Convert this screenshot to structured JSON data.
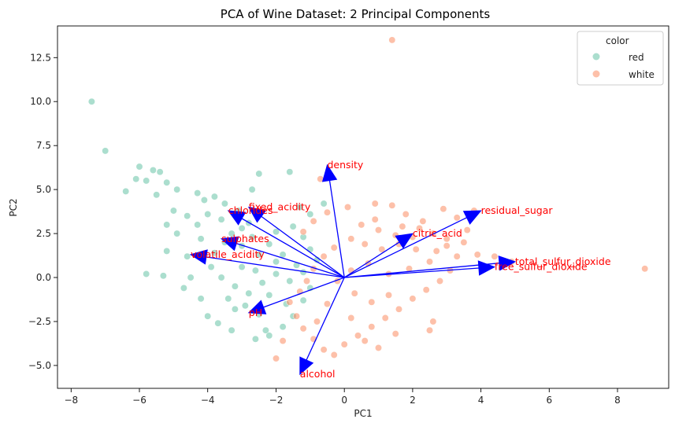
{
  "chart_data": {
    "type": "scatter",
    "title": "PCA of Wine Dataset: 2 Principal Components",
    "xlabel": "PC1",
    "ylabel": "PC2",
    "xlim": [
      -8.4,
      9.5
    ],
    "ylim": [
      -6.3,
      14.3
    ],
    "x_ticks": [
      -8,
      -6,
      -4,
      -2,
      0,
      2,
      4,
      6,
      8
    ],
    "y_ticks": [
      -5.0,
      -2.5,
      0.0,
      2.5,
      5.0,
      7.5,
      10.0,
      12.5
    ],
    "grid": false,
    "legend": {
      "title": "color",
      "position": "top-right",
      "entries": [
        {
          "label": "red",
          "color": "#66c2a5"
        },
        {
          "label": "white",
          "color": "#fc8d62"
        }
      ]
    },
    "series": [
      {
        "name": "red",
        "color": "#66c2a5",
        "points": [
          [
            -7.4,
            10.0
          ],
          [
            -7.0,
            7.2
          ],
          [
            -6.0,
            6.3
          ],
          [
            -5.6,
            6.1
          ],
          [
            -5.4,
            6.0
          ],
          [
            -6.1,
            5.6
          ],
          [
            -5.8,
            5.5
          ],
          [
            -5.2,
            5.4
          ],
          [
            -6.4,
            4.9
          ],
          [
            -5.5,
            4.7
          ],
          [
            -4.9,
            5.0
          ],
          [
            -4.3,
            4.8
          ],
          [
            -4.1,
            4.4
          ],
          [
            -3.8,
            4.6
          ],
          [
            -3.5,
            4.2
          ],
          [
            -2.5,
            5.9
          ],
          [
            -1.6,
            6.0
          ],
          [
            -2.7,
            5.0
          ],
          [
            -5.0,
            3.8
          ],
          [
            -4.6,
            3.5
          ],
          [
            -4.3,
            3.0
          ],
          [
            -4.9,
            2.5
          ],
          [
            -5.2,
            3.0
          ],
          [
            -5.2,
            1.5
          ],
          [
            -4.6,
            1.2
          ],
          [
            -5.3,
            0.1
          ],
          [
            -5.8,
            0.2
          ],
          [
            -4.5,
            0.0
          ],
          [
            -4.7,
            -0.6
          ],
          [
            -4.2,
            -1.2
          ],
          [
            -4.0,
            -2.2
          ],
          [
            -3.7,
            -2.6
          ],
          [
            -3.3,
            -3.0
          ],
          [
            -3.2,
            -1.8
          ],
          [
            -2.5,
            -2.1
          ],
          [
            -2.3,
            -3.0
          ],
          [
            -2.6,
            -3.5
          ],
          [
            -2.2,
            -3.3
          ],
          [
            -1.8,
            -2.8
          ],
          [
            -1.5,
            -2.2
          ],
          [
            -1.2,
            -1.3
          ],
          [
            -1.0,
            -0.6
          ],
          [
            -3.0,
            2.8
          ],
          [
            -2.8,
            3.1
          ],
          [
            -2.0,
            2.6
          ],
          [
            -1.5,
            2.9
          ],
          [
            -1.2,
            2.3
          ],
          [
            -1.0,
            1.6
          ],
          [
            -0.8,
            1.0
          ],
          [
            -1.4,
            0.7
          ],
          [
            -2.0,
            0.9
          ],
          [
            -2.5,
            1.3
          ],
          [
            -3.0,
            1.8
          ],
          [
            -3.5,
            2.0
          ],
          [
            -3.8,
            1.4
          ],
          [
            -3.9,
            0.6
          ],
          [
            -3.6,
            0.0
          ],
          [
            -3.2,
            -0.5
          ],
          [
            -2.8,
            -0.9
          ],
          [
            -2.4,
            -0.3
          ],
          [
            -2.0,
            0.2
          ],
          [
            -1.6,
            -0.2
          ],
          [
            -1.2,
            0.3
          ],
          [
            -2.2,
            1.9
          ],
          [
            -2.7,
            2.3
          ],
          [
            -3.3,
            2.5
          ],
          [
            -3.0,
            0.6
          ],
          [
            -2.6,
            0.4
          ],
          [
            -1.8,
            1.3
          ],
          [
            -3.4,
            -1.2
          ],
          [
            -2.9,
            -1.6
          ],
          [
            -2.2,
            -1.0
          ],
          [
            -1.7,
            -1.5
          ],
          [
            -4.2,
            2.2
          ],
          [
            -4.0,
            3.6
          ],
          [
            -3.6,
            3.3
          ],
          [
            -1.0,
            3.6
          ],
          [
            -0.6,
            4.2
          ],
          [
            -1.3,
            4.0
          ],
          [
            -3.1,
            3.8
          ]
        ]
      },
      {
        "name": "white",
        "color": "#fc8d62",
        "points": [
          [
            1.4,
            13.5
          ],
          [
            8.8,
            0.5
          ],
          [
            4.4,
            1.2
          ],
          [
            4.9,
            0.9
          ],
          [
            3.8,
            3.8
          ],
          [
            3.3,
            3.4
          ],
          [
            2.9,
            3.9
          ],
          [
            2.3,
            3.2
          ],
          [
            1.8,
            3.6
          ],
          [
            1.4,
            4.1
          ],
          [
            0.9,
            4.2
          ],
          [
            0.1,
            4.0
          ],
          [
            -0.5,
            3.7
          ],
          [
            -0.9,
            3.2
          ],
          [
            -1.2,
            2.6
          ],
          [
            0.5,
            3.0
          ],
          [
            1.0,
            2.7
          ],
          [
            1.5,
            2.4
          ],
          [
            2.0,
            2.3
          ],
          [
            2.6,
            2.5
          ],
          [
            3.0,
            2.2
          ],
          [
            3.5,
            2.0
          ],
          [
            3.9,
            1.3
          ],
          [
            3.3,
            1.2
          ],
          [
            2.7,
            1.5
          ],
          [
            2.1,
            1.6
          ],
          [
            1.6,
            1.9
          ],
          [
            1.1,
            1.6
          ],
          [
            0.6,
            1.9
          ],
          [
            0.2,
            2.2
          ],
          [
            -0.3,
            1.7
          ],
          [
            -0.6,
            1.2
          ],
          [
            -0.9,
            0.5
          ],
          [
            -1.1,
            -0.2
          ],
          [
            -1.3,
            -0.8
          ],
          [
            -1.6,
            -1.4
          ],
          [
            -1.4,
            -2.2
          ],
          [
            -1.2,
            -2.9
          ],
          [
            -0.9,
            -3.5
          ],
          [
            -0.6,
            -4.1
          ],
          [
            -0.3,
            -4.4
          ],
          [
            0.0,
            -3.8
          ],
          [
            0.4,
            -3.3
          ],
          [
            0.8,
            -2.8
          ],
          [
            1.2,
            -2.3
          ],
          [
            1.6,
            -1.8
          ],
          [
            2.0,
            -1.2
          ],
          [
            2.4,
            -0.7
          ],
          [
            2.8,
            -0.2
          ],
          [
            3.1,
            0.4
          ],
          [
            2.5,
            0.9
          ],
          [
            1.9,
            0.5
          ],
          [
            1.3,
            0.2
          ],
          [
            0.7,
            0.8
          ],
          [
            0.2,
            0.4
          ],
          [
            -0.2,
            -0.2
          ],
          [
            0.3,
            -0.9
          ],
          [
            0.8,
            -1.4
          ],
          [
            1.3,
            -1.0
          ],
          [
            -0.5,
            -1.5
          ],
          [
            -0.8,
            -2.5
          ],
          [
            0.2,
            -2.3
          ],
          [
            0.6,
            -3.6
          ],
          [
            1.0,
            -4.0
          ],
          [
            1.5,
            -3.2
          ],
          [
            2.5,
            -3.0
          ],
          [
            2.6,
            -2.5
          ],
          [
            -2.0,
            -4.6
          ],
          [
            -1.8,
            -3.6
          ],
          [
            -0.7,
            5.6
          ],
          [
            3.0,
            1.8
          ],
          [
            3.6,
            2.7
          ],
          [
            2.2,
            2.8
          ],
          [
            1.7,
            2.9
          ],
          [
            0.9,
            3.3
          ]
        ]
      }
    ],
    "loadings": [
      {
        "label": "density",
        "x": -0.5,
        "y": 6.4
      },
      {
        "label": "fixed_acidity",
        "x": -2.8,
        "y": 4.0
      },
      {
        "label": "chlorides",
        "x": -3.4,
        "y": 3.8
      },
      {
        "label": "sulphates",
        "x": -3.6,
        "y": 2.2
      },
      {
        "label": "volatile_acidity",
        "x": -4.5,
        "y": 1.3
      },
      {
        "label": "residual_sugar",
        "x": 4.0,
        "y": 3.8
      },
      {
        "label": "citric_acid",
        "x": 2.0,
        "y": 2.5
      },
      {
        "label": "total_sulfur_dioxide",
        "x": 5.0,
        "y": 0.9
      },
      {
        "label": "free_sulfur_dioxide",
        "x": 4.4,
        "y": 0.6
      },
      {
        "label": "pH",
        "x": -2.8,
        "y": -2.0
      },
      {
        "label": "alcohol",
        "x": -1.3,
        "y": -5.5
      }
    ]
  }
}
